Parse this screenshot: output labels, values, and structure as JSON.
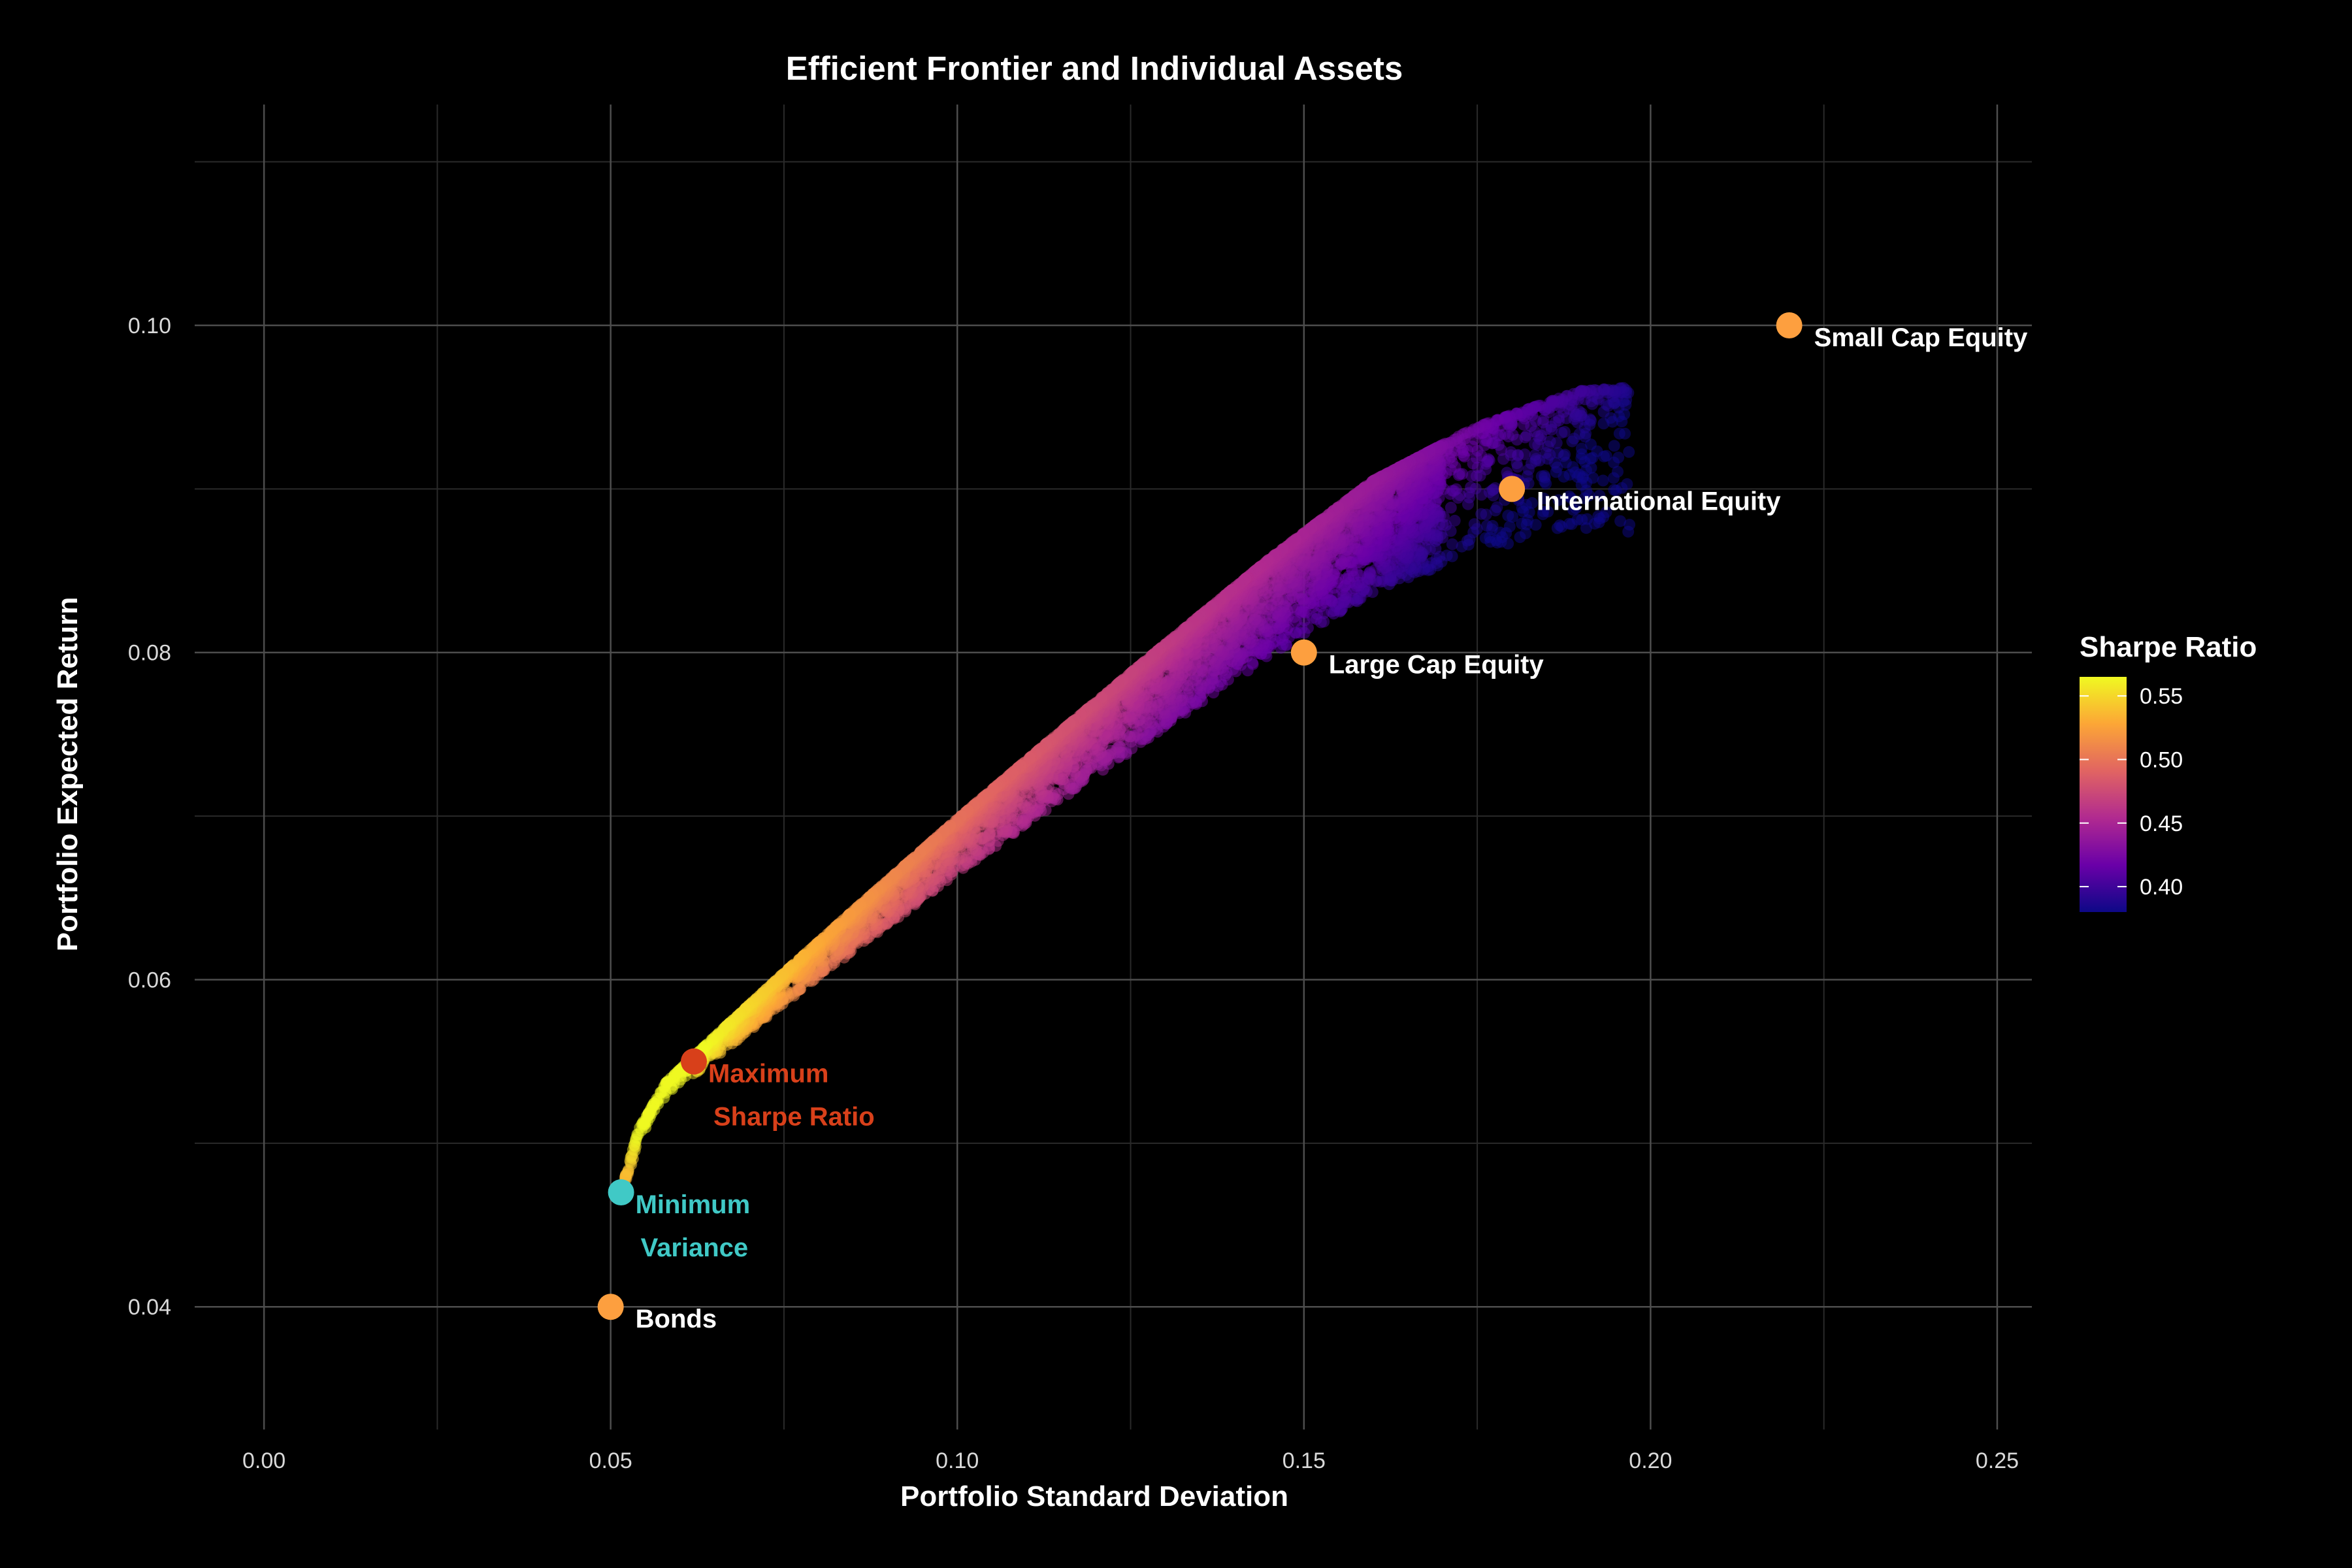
{
  "chart_data": {
    "type": "scatter",
    "title": "Efficient Frontier and Individual Assets",
    "xlabel": "Portfolio Standard Deviation",
    "ylabel": "Portfolio Expected Return",
    "xlim": [
      -0.01,
      0.255
    ],
    "ylim": [
      0.0325,
      0.1135
    ],
    "xticks": [
      0.0,
      0.05,
      0.1,
      0.15,
      0.2,
      0.25
    ],
    "xtick_labels": [
      "0.00",
      "0.05",
      "0.10",
      "0.15",
      "0.20",
      "0.25"
    ],
    "yticks": [
      0.04,
      0.06,
      0.08,
      0.1
    ],
    "ytick_labels": [
      "0.04",
      "0.06",
      "0.08",
      "0.10"
    ],
    "grid": true,
    "legend": {
      "title": "Sharpe Ratio",
      "position": "right",
      "range": [
        0.38,
        0.565
      ],
      "ticks": [
        0.4,
        0.45,
        0.5,
        0.55
      ],
      "tick_labels": [
        "0.40",
        "0.45",
        "0.50",
        "0.55"
      ],
      "colors": [
        "#0d0887",
        "#6a00a8",
        "#b12a90",
        "#e16462",
        "#fca636",
        "#f0f921"
      ]
    },
    "frontier_series": {
      "name": "Simulated portfolios",
      "count": 6000,
      "opacity": 0.5,
      "note": "random portfolios colored by Sharpe Ratio; upper edge follows the efficient frontier"
    },
    "frontier_edge": {
      "sd": [
        0.0515,
        0.054,
        0.058,
        0.065,
        0.075,
        0.085,
        0.1,
        0.115,
        0.13,
        0.145,
        0.16,
        0.175,
        0.19,
        0.197
      ],
      "ret": [
        0.047,
        0.0508,
        0.0537,
        0.0565,
        0.0604,
        0.0642,
        0.0698,
        0.0752,
        0.0805,
        0.0857,
        0.0905,
        0.0938,
        0.096,
        0.0962
      ]
    },
    "assets": {
      "color": "#fd9f3f",
      "points": [
        {
          "name": "Bonds",
          "sd": 0.05,
          "ret": 0.04
        },
        {
          "name": "Large Cap Equity",
          "sd": 0.15,
          "ret": 0.08
        },
        {
          "name": "International Equity",
          "sd": 0.18,
          "ret": 0.09
        },
        {
          "name": "Small Cap Equity",
          "sd": 0.22,
          "ret": 0.1
        }
      ]
    },
    "special_points": [
      {
        "name": "Maximum Sharpe Ratio",
        "label_lines": [
          "Maximum",
          "Sharpe Ratio"
        ],
        "sd": 0.062,
        "ret": 0.055,
        "color": "#d8401a"
      },
      {
        "name": "Minimum Variance",
        "label_lines": [
          "Minimum",
          "Variance"
        ],
        "sd": 0.0515,
        "ret": 0.047,
        "color": "#40c9c6"
      }
    ]
  }
}
